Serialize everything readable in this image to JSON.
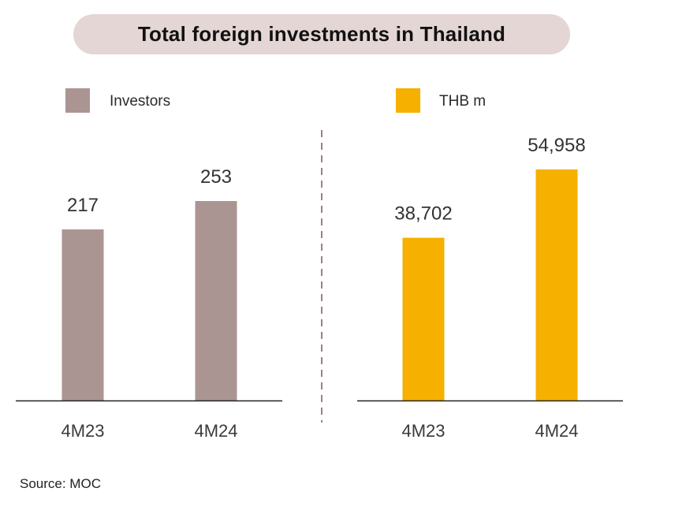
{
  "title": "Total foreign investments in Thailand",
  "source": "Source: MOC",
  "colors": {
    "investors": "#ab9593",
    "thb": "#f5b000",
    "pill": "#e4d6d4",
    "divider": "#a07d88"
  },
  "chart_data": [
    {
      "type": "bar",
      "categories": [
        "4M23",
        "4M24"
      ],
      "series": [
        {
          "name": "Investors",
          "values": [
            217,
            253
          ],
          "labels": [
            "217",
            "253"
          ]
        }
      ],
      "color": "#ab9593",
      "ylim": [
        0,
        300
      ],
      "legend": "top-left",
      "grid": false
    },
    {
      "type": "bar",
      "categories": [
        "4M23",
        "4M24"
      ],
      "series": [
        {
          "name": "THB m",
          "values": [
            38702,
            54958
          ],
          "labels": [
            "38,702",
            "54,958"
          ]
        }
      ],
      "color": "#f5b000",
      "ylim": [
        0,
        60000
      ],
      "legend": "top-right",
      "grid": false
    }
  ]
}
